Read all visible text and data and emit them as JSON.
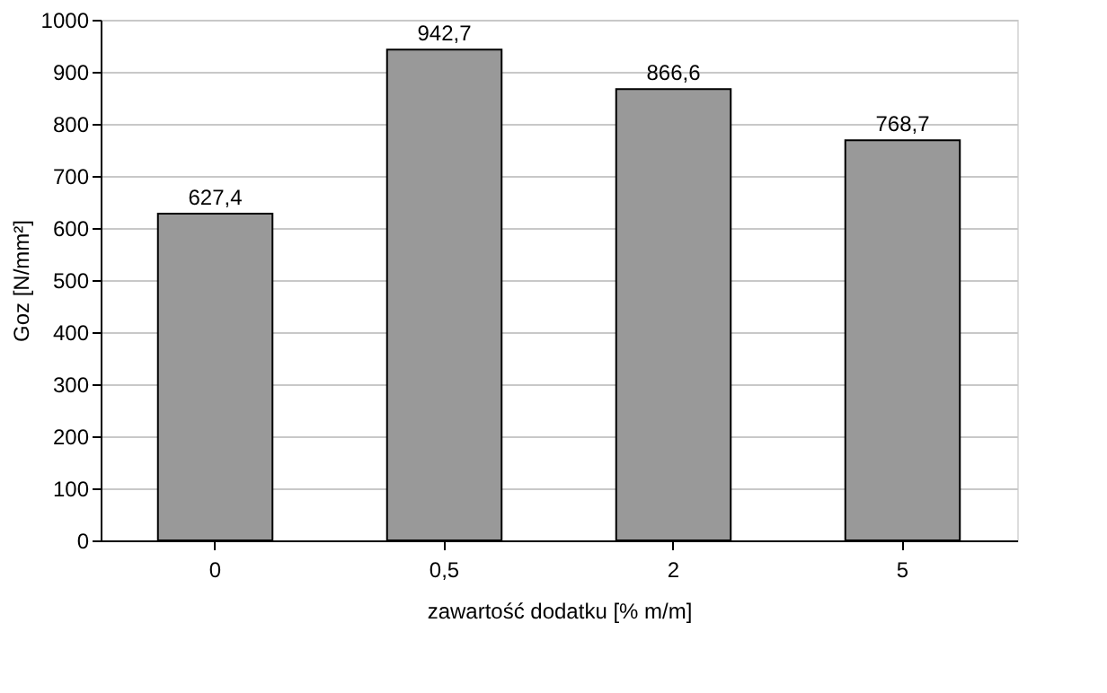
{
  "chart_data": {
    "type": "bar",
    "xlabel": "zawartość dodatku [% m/m]",
    "ylabel": "Goz [N/mm²]",
    "categories": [
      "0",
      "0,5",
      "2",
      "5"
    ],
    "values": [
      627.4,
      942.7,
      866.6,
      768.7
    ],
    "value_labels": [
      "627,4",
      "942,7",
      "866,6",
      "768,7"
    ],
    "color": "#999999",
    "ylim": [
      0,
      1000
    ],
    "yticks": [
      0,
      100,
      200,
      300,
      400,
      500,
      600,
      700,
      800,
      900,
      1000
    ],
    "grid": "y"
  }
}
